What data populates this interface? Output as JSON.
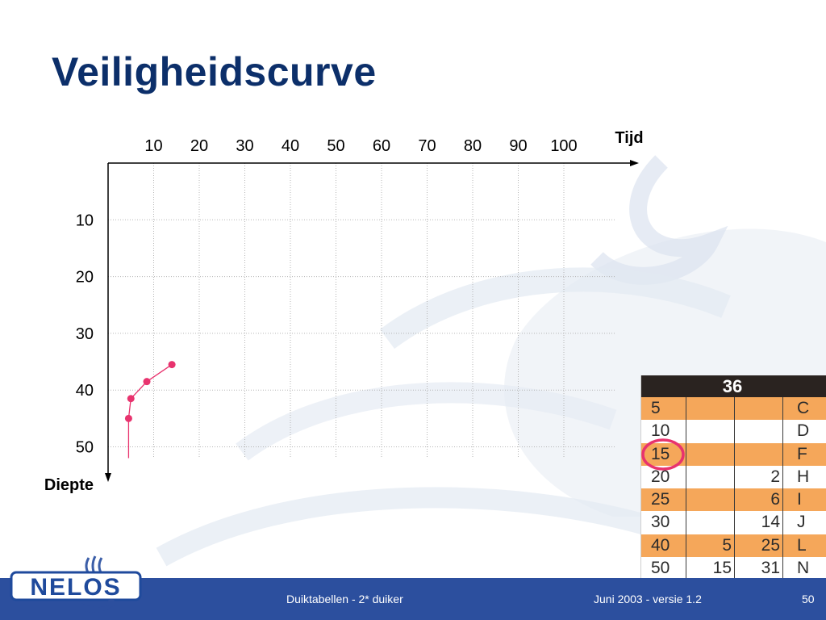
{
  "slide": {
    "title": "Veiligheidscurve",
    "footer_center": "Duiktabellen - 2* duiker",
    "footer_right": "Juni 2003 - versie 1.2",
    "page_number": "50",
    "logo_text": "NELOS"
  },
  "chart_data": {
    "type": "line",
    "x_axis": {
      "label": "Tijd",
      "ticks": [
        10,
        20,
        30,
        40,
        50,
        60,
        70,
        80,
        90,
        100
      ],
      "range": [
        0,
        110
      ],
      "position": "top"
    },
    "y_axis": {
      "label": "Diepte",
      "ticks": [
        10,
        20,
        30,
        40,
        50
      ],
      "range": [
        0,
        55
      ],
      "inverted": true
    },
    "grid": true,
    "colors": {
      "curve": "#e8336e",
      "axis": "#000000",
      "grid": "#b5b5b5"
    },
    "series": [
      {
        "values": [
          {
            "x": 4.5,
            "y": 52
          },
          {
            "x": 4.5,
            "y": 45
          },
          {
            "x": 5,
            "y": 41.5
          },
          {
            "x": 8.5,
            "y": 38.5
          },
          {
            "x": 14,
            "y": 35.5
          }
        ],
        "markers": [
          {
            "x": 4.5,
            "y": 45
          },
          {
            "x": 5,
            "y": 41.5
          },
          {
            "x": 8.5,
            "y": 38.5
          },
          {
            "x": 14,
            "y": 35.5
          }
        ]
      }
    ]
  },
  "dive_table": {
    "header": "36",
    "colors": {
      "orange": "#f5a75a",
      "white": "#ffffff",
      "highlight": "#e8336e",
      "header_bg": "#2a2320"
    },
    "rows": [
      {
        "cells": [
          "5",
          "",
          "",
          "C"
        ],
        "shade": "orange"
      },
      {
        "cells": [
          "10",
          "",
          "",
          "D"
        ],
        "shade": "white"
      },
      {
        "cells": [
          "15",
          "",
          "",
          "F"
        ],
        "shade": "orange",
        "circled": true
      },
      {
        "cells": [
          "20",
          "",
          "2",
          "H"
        ],
        "shade": "white"
      },
      {
        "cells": [
          "25",
          "",
          "6",
          "I"
        ],
        "shade": "orange"
      },
      {
        "cells": [
          "30",
          "",
          "14",
          "J"
        ],
        "shade": "white"
      },
      {
        "cells": [
          "40",
          "5",
          "25",
          "L"
        ],
        "shade": "orange"
      },
      {
        "cells": [
          "50",
          "15",
          "31",
          "N"
        ],
        "shade": "white"
      }
    ]
  }
}
